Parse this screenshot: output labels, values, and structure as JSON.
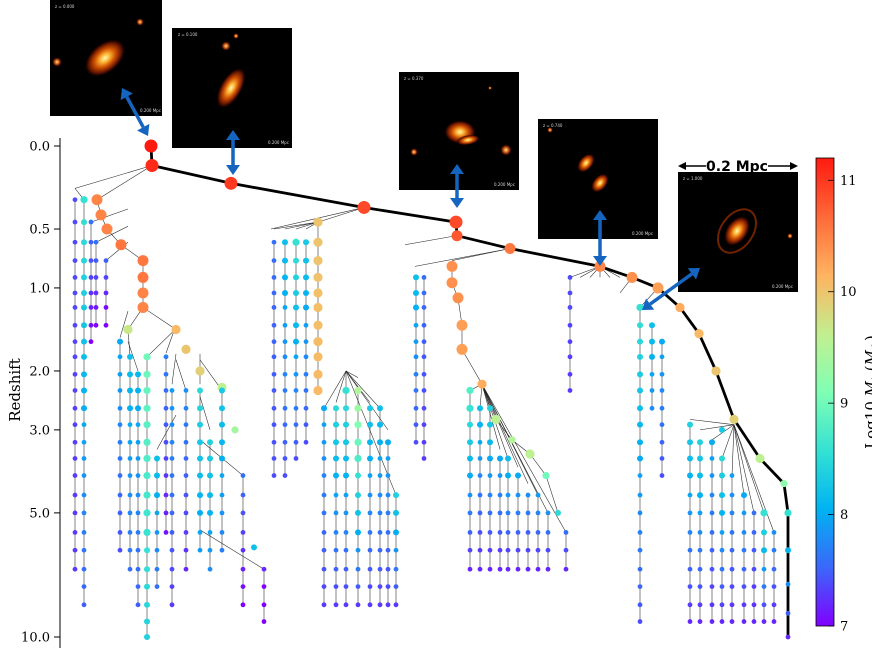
{
  "chart_data": {
    "type": "scatter",
    "subtype": "merger-tree",
    "xlabel": "",
    "ylabel": "Redshift",
    "y_scale": "log(1+z)",
    "y_ticks": [
      "0.0",
      "0.5",
      "1.0",
      "2.0",
      "3.0",
      "5.0",
      "10.0"
    ],
    "colorbar": {
      "label": "Log10 M* (M☉)",
      "label_parts": [
        "Log10 ",
        "M",
        "*",
        " (",
        "M",
        "☉",
        ")"
      ],
      "range": [
        7,
        11.2
      ],
      "ticks": [
        "7",
        "8",
        "9",
        "10",
        "11"
      ],
      "colormap": "rainbow",
      "colors": [
        "#8000ff",
        "#3d64fa",
        "#00b3f2",
        "#32e0d4",
        "#80ffb4",
        "#c0f090",
        "#ffb360",
        "#ff6c3a",
        "#ff1a10"
      ]
    },
    "main_branch": {
      "color": "#000000",
      "redshift": [
        0.0,
        0.1,
        0.2,
        0.35,
        0.45,
        0.55,
        0.65,
        0.8,
        0.9,
        1.0,
        1.2,
        1.5,
        2.0,
        2.8,
        3.6,
        4.2,
        5.0,
        6.2,
        7.5,
        8.8,
        10.0
      ],
      "log_mstar": [
        11.2,
        11.1,
        11.0,
        10.9,
        10.9,
        10.8,
        10.6,
        10.5,
        10.4,
        10.3,
        10.2,
        10.1,
        10.0,
        9.9,
        9.6,
        9.2,
        8.6,
        8.1,
        7.8,
        7.5,
        7.2
      ]
    },
    "snapshots": [
      {
        "redshift_label": "z = 0.000",
        "scale_label": "0.200 Mpc"
      },
      {
        "redshift_label": "z = 0.100",
        "scale_label": "0.200 Mpc"
      },
      {
        "redshift_label": "z = 0.370",
        "scale_label": "0.200 Mpc"
      },
      {
        "redshift_label": "z = 0.740",
        "scale_label": "0.200 Mpc"
      },
      {
        "redshift_label": "z = 1.000",
        "scale_label": "0.200 Mpc"
      }
    ],
    "scale_bar_label": "0.2 Mpc",
    "arrow_color": "#1565c0"
  }
}
